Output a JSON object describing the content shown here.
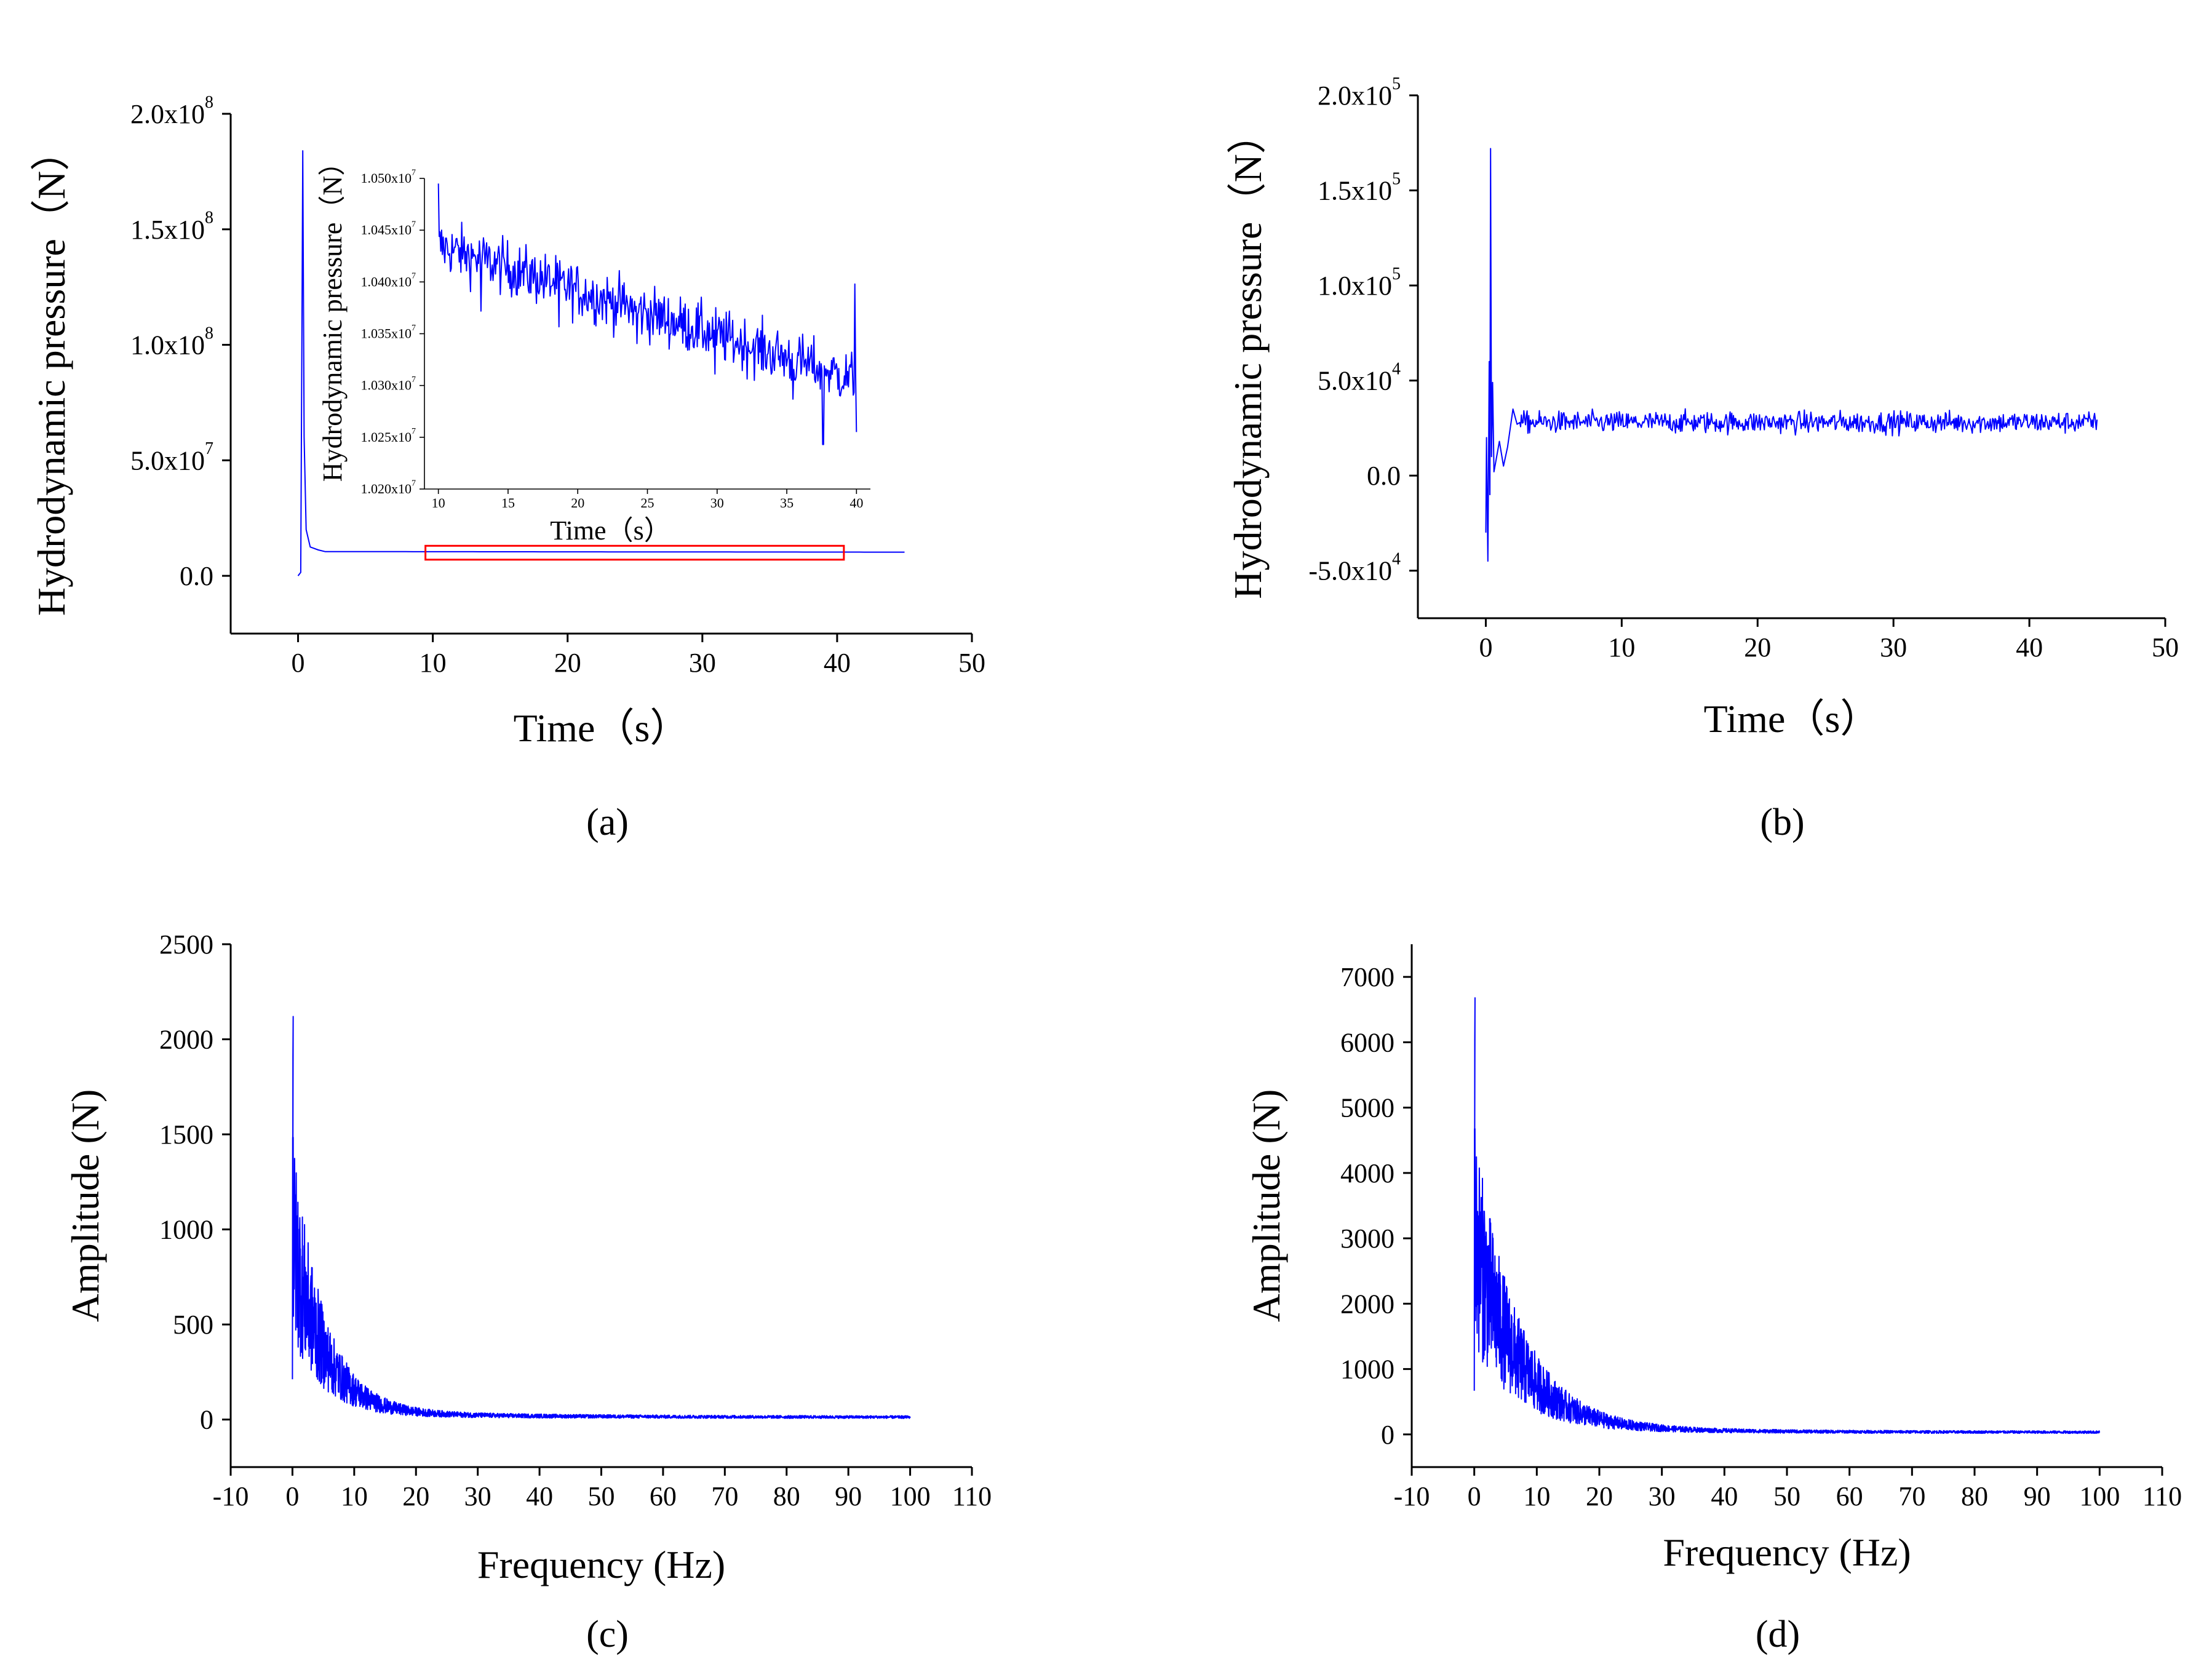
{
  "colors": {
    "line": "#0000ff",
    "highlight": "#ff0000",
    "axis": "#000000"
  },
  "chart_data": [
    {
      "id": "a",
      "type": "line",
      "panel_label": "a",
      "xlabel": "Time（s）",
      "ylabel": "Hydrodynamic pressure（N）",
      "xlim": [
        -5,
        50
      ],
      "ylim": [
        -25000000.0,
        200000000.0
      ],
      "xticks": [
        0,
        10,
        20,
        30,
        40,
        50
      ],
      "xtick_labels": [
        "0",
        "10",
        "20",
        "30",
        "40",
        "50"
      ],
      "yticks": [
        0,
        50000000.0,
        100000000.0,
        150000000.0,
        200000000.0
      ],
      "ytick_labels": [
        {
          "mant": "0.0",
          "exp": ""
        },
        {
          "mant": "5.0x10",
          "exp": "7"
        },
        {
          "mant": "1.0x10",
          "exp": "8"
        },
        {
          "mant": "1.5x10",
          "exp": "8"
        },
        {
          "mant": "2.0x10",
          "exp": "8"
        }
      ],
      "series_profile": {
        "t_end": 45,
        "peak_t": 0.35,
        "peak": 184000000.0,
        "steady": 10500000.0,
        "final": 10250000.0
      },
      "highlight_box": {
        "x": [
          10,
          40.5
        ],
        "y": [
          7000000.0,
          13000000.0
        ]
      },
      "inset": {
        "xlabel": "Time（s）",
        "ylabel": "Hydrodynamic pressure（N）",
        "xlim": [
          9,
          41
        ],
        "ylim": [
          10200000.0,
          10500000.0
        ],
        "xticks": [
          10,
          15,
          20,
          25,
          30,
          35,
          40
        ],
        "xtick_labels": [
          "10",
          "15",
          "20",
          "25",
          "30",
          "35",
          "40"
        ],
        "yticks": [
          10200000.0,
          10250000.0,
          10300000.0,
          10350000.0,
          10400000.0,
          10450000.0,
          10500000.0
        ],
        "ytick_labels": [
          {
            "mant": "1.020x10",
            "exp": "7"
          },
          {
            "mant": "1.025x10",
            "exp": "7"
          },
          {
            "mant": "1.030x10",
            "exp": "7"
          },
          {
            "mant": "1.035x10",
            "exp": "7"
          },
          {
            "mant": "1.040x10",
            "exp": "7"
          },
          {
            "mant": "1.045x10",
            "exp": "7"
          },
          {
            "mant": "1.050x10",
            "exp": "7"
          }
        ],
        "trend": {
          "start": 10435000.0,
          "end": 10305000.0,
          "noise": 45000.0
        }
      }
    },
    {
      "id": "b",
      "type": "line",
      "panel_label": "b",
      "xlabel": "Time（s）",
      "ylabel": "Hydrodynamic pressure（N）",
      "xlim": [
        -5,
        50
      ],
      "ylim": [
        -75000.0,
        200000.0
      ],
      "xticks": [
        0,
        10,
        20,
        30,
        40,
        50
      ],
      "xtick_labels": [
        "0",
        "10",
        "20",
        "30",
        "40",
        "50"
      ],
      "yticks": [
        -50000.0,
        0,
        50000.0,
        100000.0,
        150000.0,
        200000.0
      ],
      "ytick_labels": [
        {
          "mant": "-5.0x10",
          "exp": "4"
        },
        {
          "mant": "0.0",
          "exp": ""
        },
        {
          "mant": "5.0x10",
          "exp": "4"
        },
        {
          "mant": "1.0x10",
          "exp": "5"
        },
        {
          "mant": "1.5x10",
          "exp": "5"
        },
        {
          "mant": "2.0x10",
          "exp": "5"
        }
      ],
      "series_profile": {
        "t_end": 45,
        "peak": 172000.0,
        "min": -45000.0,
        "mean": 28000.0,
        "noise": 7000.0
      }
    },
    {
      "id": "c",
      "type": "line",
      "panel_label": "c",
      "xlabel": "Frequency (Hz)",
      "ylabel": "Amplitude (N)",
      "xlim": [
        -10,
        110
      ],
      "ylim": [
        -250,
        2500
      ],
      "xticks": [
        -10,
        0,
        10,
        20,
        30,
        40,
        50,
        60,
        70,
        80,
        90,
        100,
        110
      ],
      "xtick_labels": [
        "-10",
        "0",
        "10",
        "20",
        "30",
        "40",
        "50",
        "60",
        "70",
        "80",
        "90",
        "100",
        "110"
      ],
      "yticks": [
        0,
        500,
        1000,
        1500,
        2000,
        2500
      ],
      "ytick_labels": [
        {
          "mant": "0",
          "exp": ""
        },
        {
          "mant": "500",
          "exp": ""
        },
        {
          "mant": "1000",
          "exp": ""
        },
        {
          "mant": "1500",
          "exp": ""
        },
        {
          "mant": "2000",
          "exp": ""
        },
        {
          "mant": "2500",
          "exp": ""
        }
      ],
      "series_profile": {
        "f_end": 100,
        "peak": 2120,
        "decay_scale": 5.0,
        "floor": 15
      }
    },
    {
      "id": "d",
      "type": "line",
      "panel_label": "d",
      "xlabel": "Frequency (Hz)",
      "ylabel": "Amplitude (N)",
      "xlim": [
        -10,
        110
      ],
      "ylim": [
        -500,
        7500
      ],
      "xticks": [
        -10,
        0,
        10,
        20,
        30,
        40,
        50,
        60,
        70,
        80,
        90,
        100,
        110
      ],
      "xtick_labels": [
        "-10",
        "0",
        "10",
        "20",
        "30",
        "40",
        "50",
        "60",
        "70",
        "80",
        "90",
        "100",
        "110"
      ],
      "yticks": [
        0,
        1000,
        2000,
        3000,
        4000,
        5000,
        6000,
        7000
      ],
      "ytick_labels": [
        {
          "mant": "0",
          "exp": ""
        },
        {
          "mant": "1000",
          "exp": ""
        },
        {
          "mant": "2000",
          "exp": ""
        },
        {
          "mant": "3000",
          "exp": ""
        },
        {
          "mant": "4000",
          "exp": ""
        },
        {
          "mant": "5000",
          "exp": ""
        },
        {
          "mant": "6000",
          "exp": ""
        },
        {
          "mant": "7000",
          "exp": ""
        }
      ],
      "series_profile": {
        "f_end": 100,
        "peak": 6680,
        "decay_scale": 7.0,
        "floor": 40
      }
    }
  ]
}
